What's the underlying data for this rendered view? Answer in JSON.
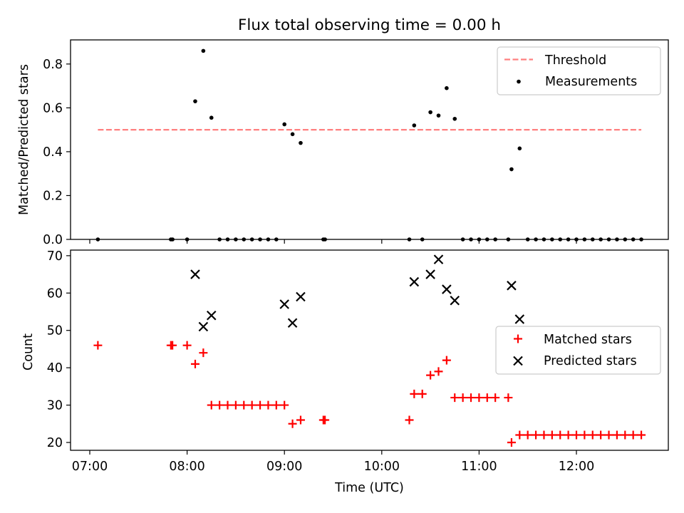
{
  "title": "Flux total observing time = 0.00 h",
  "x_tick_labels": [
    "07:00",
    "08:00",
    "09:00",
    "10:00",
    "11:00",
    "12:00"
  ],
  "colors": {
    "threshold": "#ff7f7f",
    "measurements": "#000000",
    "matched": "#ff0000",
    "predicted": "#000000"
  },
  "chart_data": [
    {
      "type": "scatter",
      "panel": "top",
      "ylabel": "Matched/Predicted stars",
      "xlabel": "",
      "ylim": [
        0.0,
        0.91
      ],
      "yticks": [
        0.0,
        0.2,
        0.4,
        0.6,
        0.8
      ],
      "ytick_labels": [
        "0.0",
        "0.2",
        "0.4",
        "0.6",
        "0.8"
      ],
      "legend_position": "top-right",
      "threshold": {
        "name": "Threshold",
        "value": 0.5,
        "x_range": [
          "07:05",
          "12:40"
        ]
      },
      "series": [
        {
          "name": "Measurements",
          "marker": "dot",
          "x": [
            "07:05",
            "07:50",
            "07:51",
            "08:00",
            "08:05",
            "08:10",
            "08:15",
            "08:20",
            "08:25",
            "08:30",
            "08:35",
            "08:40",
            "08:45",
            "08:50",
            "08:55",
            "09:00",
            "09:05",
            "09:10",
            "09:24",
            "09:25",
            "10:17",
            "10:20",
            "10:25",
            "10:30",
            "10:35",
            "10:40",
            "10:45",
            "10:50",
            "10:55",
            "11:00",
            "11:05",
            "11:10",
            "11:18",
            "11:20",
            "11:25",
            "11:30",
            "11:35",
            "11:40",
            "11:45",
            "11:50",
            "11:55",
            "12:00",
            "12:05",
            "12:10",
            "12:15",
            "12:20",
            "12:25",
            "12:30",
            "12:35",
            "12:40"
          ],
          "y": [
            0.0,
            0.0,
            0.0,
            0.0,
            0.63,
            0.86,
            0.555,
            0.0,
            0.0,
            0.0,
            0.0,
            0.0,
            0.0,
            0.0,
            0.0,
            0.525,
            0.48,
            0.44,
            0.0,
            0.0,
            0.0,
            0.52,
            0.0,
            0.58,
            0.565,
            0.69,
            0.55,
            0.0,
            0.0,
            0.0,
            0.0,
            0.0,
            0.0,
            0.32,
            0.415,
            0.0,
            0.0,
            0.0,
            0.0,
            0.0,
            0.0,
            0.0,
            0.0,
            0.0,
            0.0,
            0.0,
            0.0,
            0.0,
            0.0,
            0.0
          ]
        }
      ]
    },
    {
      "type": "scatter",
      "panel": "bottom",
      "ylabel": "Count",
      "xlabel": "Time (UTC)",
      "ylim": [
        17.9,
        71.5
      ],
      "yticks": [
        20,
        30,
        40,
        50,
        60,
        70
      ],
      "ytick_labels": [
        "20",
        "30",
        "40",
        "50",
        "60",
        "70"
      ],
      "legend_position": "center-right",
      "series": [
        {
          "name": "Matched stars",
          "marker": "plus",
          "x": [
            "07:05",
            "07:50",
            "07:51",
            "08:00",
            "08:05",
            "08:10",
            "08:15",
            "08:20",
            "08:25",
            "08:30",
            "08:35",
            "08:40",
            "08:45",
            "08:50",
            "08:55",
            "09:00",
            "09:05",
            "09:10",
            "09:24",
            "09:25",
            "10:17",
            "10:20",
            "10:25",
            "10:30",
            "10:35",
            "10:40",
            "10:45",
            "10:50",
            "10:55",
            "11:00",
            "11:05",
            "11:10",
            "11:18",
            "11:20",
            "11:25",
            "11:30",
            "11:35",
            "11:40",
            "11:45",
            "11:50",
            "11:55",
            "12:00",
            "12:05",
            "12:10",
            "12:15",
            "12:20",
            "12:25",
            "12:30",
            "12:35",
            "12:40"
          ],
          "y": [
            46,
            46,
            46,
            46,
            41,
            44,
            30,
            30,
            30,
            30,
            30,
            30,
            30,
            30,
            30,
            30,
            25,
            26,
            26,
            26,
            26,
            33,
            33,
            38,
            39,
            42,
            32,
            32,
            32,
            32,
            32,
            32,
            32,
            20,
            22,
            22,
            22,
            22,
            22,
            22,
            22,
            22,
            22,
            22,
            22,
            22,
            22,
            22,
            22,
            22
          ]
        },
        {
          "name": "Predicted stars",
          "marker": "x",
          "x": [
            "08:05",
            "08:10",
            "08:15",
            "09:00",
            "09:05",
            "09:10",
            "10:20",
            "10:30",
            "10:35",
            "10:40",
            "10:45",
            "11:20",
            "11:25"
          ],
          "y": [
            65,
            51,
            54,
            57,
            52,
            59,
            63,
            65,
            69,
            61,
            58,
            62,
            53
          ]
        }
      ]
    }
  ]
}
